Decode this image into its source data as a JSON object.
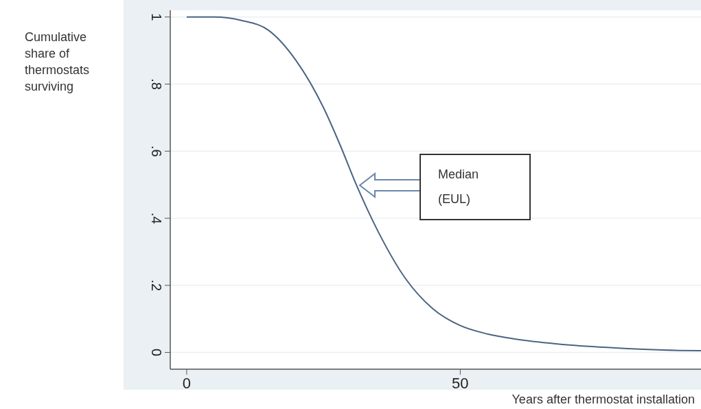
{
  "chart_data": {
    "type": "line",
    "xlabel": "Years after thermostat installation",
    "ylabel": "Cumulative share of thermostats surviving",
    "x": [
      0,
      5,
      10,
      15,
      20,
      25,
      28,
      31,
      35,
      40,
      45,
      50,
      55,
      60,
      70,
      80,
      90,
      94
    ],
    "series": [
      {
        "color": "#4a6482",
        "values": [
          1,
          1,
          0.99,
          0.96,
          0.87,
          0.73,
          0.62,
          0.5,
          0.36,
          0.22,
          0.13,
          0.08,
          0.055,
          0.04,
          0.022,
          0.012,
          0.006,
          0.005
        ]
      }
    ],
    "xlim": [
      -3,
      94
    ],
    "xticks": [
      0,
      50
    ],
    "ylim": [
      -0.05,
      1.02
    ],
    "yticks": [
      {
        "value": 0,
        "label": "0"
      },
      {
        "value": 0.2,
        "label": ".2"
      },
      {
        "value": 0.4,
        "label": ".4"
      },
      {
        "value": 0.6,
        "label": ".6"
      },
      {
        "value": 0.8,
        "label": ".8"
      },
      {
        "value": 1,
        "label": "1"
      }
    ],
    "grid": "y",
    "marker": "none",
    "line_style": "solid",
    "annotations": [
      "Median (EUL)"
    ]
  }
}
